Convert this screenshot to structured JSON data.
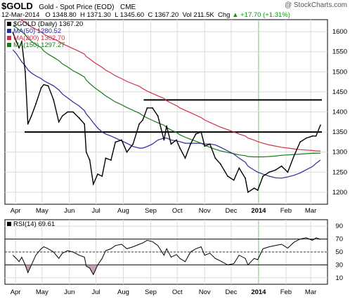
{
  "header": {
    "symbol": "$GOLD",
    "description": "Gold - Spot Price (EOD)",
    "exchange": "CME",
    "credit": "@ StockCharts.com",
    "date": "12-Mar-2014",
    "open_label": "O",
    "open": "1348.80",
    "high_label": "H",
    "high": "1371.30",
    "low_label": "L",
    "low": "1345.60",
    "close_label": "C",
    "close": "1367.20",
    "volume_label": "Vol",
    "volume": "211.5K",
    "change_label": "Chg",
    "change": "+17.70 (+1.31%)",
    "change_arrow": "▲"
  },
  "chart_data": [
    {
      "type": "line",
      "legend": [
        {
          "name": "$GOLD (Daily) 1367.20",
          "color": "#000000"
        },
        {
          "name": "MA(50) 1280.52",
          "color": "#2a2a9a"
        },
        {
          "name": "MA(200) 1302.70",
          "color": "#d0304a"
        },
        {
          "name": "MA(150) 1297.27",
          "color": "#1a7a1a"
        }
      ],
      "x_ticks": [
        "Apr",
        "May",
        "Jun",
        "Jul",
        "Aug",
        "Sep",
        "Oct",
        "Nov",
        "Dec",
        "2014",
        "Feb",
        "Mar"
      ],
      "y_ticks": [
        1200,
        1250,
        1300,
        1350,
        1400,
        1450,
        1500,
        1550,
        1600
      ],
      "ylim": [
        1170,
        1630
      ],
      "x": [
        "2013-03-29",
        "2013-04-02",
        "2013-04-05",
        "2013-04-08",
        "2013-04-12",
        "2013-04-15",
        "2013-04-19",
        "2013-04-24",
        "2013-04-30",
        "2013-05-03",
        "2013-05-08",
        "2013-05-14",
        "2013-05-20",
        "2013-05-24",
        "2013-05-30",
        "2013-06-05",
        "2013-06-12",
        "2013-06-18",
        "2013-06-20",
        "2013-06-24",
        "2013-06-28",
        "2013-07-03",
        "2013-07-08",
        "2013-07-12",
        "2013-07-18",
        "2013-07-23",
        "2013-07-30",
        "2013-08-05",
        "2013-08-12",
        "2013-08-19",
        "2013-08-23",
        "2013-08-28",
        "2013-09-03",
        "2013-09-09",
        "2013-09-16",
        "2013-09-19",
        "2013-09-24",
        "2013-09-30",
        "2013-10-04",
        "2013-10-10",
        "2013-10-16",
        "2013-10-22",
        "2013-10-28",
        "2013-11-01",
        "2013-11-07",
        "2013-11-13",
        "2013-11-19",
        "2013-11-27",
        "2013-12-04",
        "2013-12-10",
        "2013-12-17",
        "2013-12-20",
        "2013-12-27",
        "2013-12-31",
        "2014-01-06",
        "2014-01-13",
        "2014-01-20",
        "2014-01-27",
        "2014-02-03",
        "2014-02-10",
        "2014-02-17",
        "2014-02-24",
        "2014-03-03",
        "2014-03-07",
        "2014-03-12"
      ],
      "series": [
        {
          "name": "$GOLD (Daily)",
          "color": "#000000",
          "values": [
            1598,
            1575,
            1560,
            1575,
            1500,
            1370,
            1390,
            1420,
            1460,
            1468,
            1465,
            1430,
            1375,
            1390,
            1400,
            1400,
            1385,
            1370,
            1300,
            1280,
            1220,
            1245,
            1240,
            1285,
            1280,
            1325,
            1330,
            1300,
            1320,
            1370,
            1380,
            1410,
            1410,
            1390,
            1330,
            1365,
            1320,
            1330,
            1310,
            1285,
            1320,
            1345,
            1350,
            1315,
            1320,
            1285,
            1270,
            1240,
            1230,
            1260,
            1235,
            1200,
            1210,
            1205,
            1240,
            1250,
            1255,
            1265,
            1250,
            1290,
            1325,
            1335,
            1340,
            1340,
            1367
          ]
        },
        {
          "name": "MA(50)",
          "color": "#2a2a9a",
          "values": [
            1555,
            1545,
            1535,
            1525,
            1515,
            1505,
            1497,
            1490,
            1483,
            1478,
            1472,
            1465,
            1455,
            1445,
            1435,
            1425,
            1415,
            1403,
            1395,
            1385,
            1373,
            1360,
            1350,
            1345,
            1340,
            1335,
            1328,
            1322,
            1314,
            1310,
            1310,
            1314,
            1320,
            1330,
            1335,
            1335,
            1330,
            1328,
            1326,
            1322,
            1322,
            1322,
            1322,
            1320,
            1320,
            1318,
            1312,
            1303,
            1295,
            1285,
            1275,
            1265,
            1255,
            1250,
            1245,
            1240,
            1236,
            1235,
            1238,
            1242,
            1248,
            1256,
            1264,
            1272,
            1280
          ]
        },
        {
          "name": "MA(200)",
          "color": "#d0304a",
          "values": [
            1640,
            1636,
            1632,
            1628,
            1623,
            1618,
            1612,
            1606,
            1600,
            1594,
            1588,
            1582,
            1576,
            1570,
            1564,
            1558,
            1551,
            1544,
            1538,
            1532,
            1525,
            1518,
            1511,
            1504,
            1497,
            1490,
            1483,
            1476,
            1470,
            1464,
            1458,
            1452,
            1446,
            1440,
            1434,
            1428,
            1422,
            1416,
            1410,
            1404,
            1398,
            1392,
            1386,
            1380,
            1374,
            1368,
            1362,
            1356,
            1350,
            1345,
            1340,
            1335,
            1330,
            1326,
            1322,
            1318,
            1315,
            1312,
            1310,
            1308,
            1306,
            1305,
            1304,
            1303,
            1302.7
          ]
        },
        {
          "name": "MA(150)",
          "color": "#1a7a1a",
          "values": [
            1615,
            1610,
            1605,
            1600,
            1592,
            1584,
            1576,
            1568,
            1560,
            1552,
            1544,
            1536,
            1528,
            1520,
            1512,
            1503,
            1495,
            1487,
            1479,
            1471,
            1463,
            1455,
            1447,
            1440,
            1432,
            1425,
            1418,
            1411,
            1404,
            1397,
            1391,
            1385,
            1379,
            1373,
            1367,
            1361,
            1355,
            1349,
            1343,
            1337,
            1332,
            1327,
            1322,
            1317,
            1312,
            1307,
            1303,
            1299,
            1296,
            1293,
            1291,
            1289,
            1288,
            1288,
            1288,
            1289,
            1290,
            1292,
            1293,
            1294,
            1295,
            1296,
            1297,
            1297,
            1297.27
          ]
        }
      ],
      "horizontal_lines": [
        1350,
        1430
      ]
    },
    {
      "type": "line",
      "legend": [
        {
          "name": "RSI(14) 69.61",
          "color": "#000000"
        }
      ],
      "x_ticks": [
        "Apr",
        "May",
        "Jun",
        "Jul",
        "Aug",
        "Sep",
        "Oct",
        "Nov",
        "Dec",
        "2014",
        "Feb",
        "Mar"
      ],
      "y_ticks": [
        10,
        30,
        50,
        70,
        90
      ],
      "ylim": [
        0,
        100
      ],
      "reference_lines": [
        30,
        50,
        70
      ],
      "series": [
        {
          "name": "RSI(14)",
          "color": "#000000",
          "values": [
            45,
            40,
            35,
            42,
            30,
            18,
            30,
            45,
            55,
            58,
            55,
            50,
            40,
            48,
            52,
            50,
            45,
            42,
            28,
            25,
            15,
            30,
            40,
            52,
            55,
            60,
            62,
            55,
            58,
            62,
            64,
            68,
            66,
            60,
            45,
            55,
            42,
            46,
            40,
            35,
            50,
            55,
            58,
            45,
            48,
            40,
            36,
            30,
            32,
            45,
            40,
            30,
            40,
            38,
            55,
            58,
            60,
            62,
            56,
            65,
            70,
            72,
            68,
            72,
            69.61
          ]
        }
      ],
      "shaded_below_30": "#c8a2b8",
      "shaded_above_70": "#aeb6d8"
    }
  ]
}
